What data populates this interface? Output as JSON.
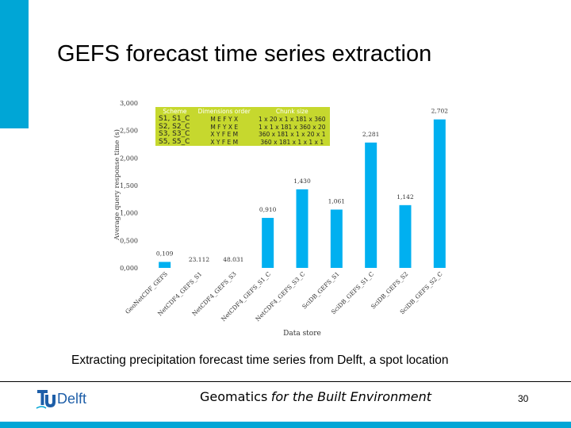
{
  "slide": {
    "title": "GEFS forecast time series extraction",
    "caption": "Extracting precipitation forecast time series from Delft, a spot location",
    "footer_bold": "Geomatics",
    "footer_italic": "for the Built Environment",
    "page_number": "30",
    "logo_text": "Delft",
    "logo_icon": "tu-flame-icon"
  },
  "colors": {
    "accent": "#00a6d6",
    "bar": "#00b0f0",
    "legend_bg": "#c6d82e",
    "logo": "#1d5ea8"
  },
  "legend": {
    "headers": {
      "scheme": "Scheme",
      "dimensions": "Dimensions order",
      "chunk": "Chunk size"
    },
    "rows": [
      {
        "scheme": "S1, S1_C",
        "dimensions": "M E F Y X",
        "chunk": "1 x 20 x 1 x 181 x 360"
      },
      {
        "scheme": "S2, S2_C",
        "dimensions": "M F Y X E",
        "chunk": "1 x 1 x 181 x 360 x 20"
      },
      {
        "scheme": "S3, S3_C",
        "dimensions": "X Y F E M",
        "chunk": "360 x 181 x 1 x 20 x 1"
      },
      {
        "scheme": "S5, S5_C",
        "dimensions": "X Y F E M",
        "chunk": "360 x 181 x 1 x 1 x 1"
      }
    ]
  },
  "chart_data": {
    "type": "bar",
    "title": "",
    "xlabel": "Data store",
    "ylabel": "Average query response time (s)",
    "ylim": [
      0,
      3
    ],
    "yticks": [
      0,
      0.5,
      1,
      1.5,
      2,
      2.5,
      3
    ],
    "ytick_labels": [
      "0,000",
      "0,500",
      "1,000",
      "1,500",
      "2,000",
      "2,500",
      "3,000"
    ],
    "grid": false,
    "categories": [
      "GeoNetCDF_GEFS",
      "NetCDF4_GEFS_S1",
      "NetCDF4_GEFS_S3",
      "NetCDF4_GEFS_S1_C",
      "NetCDF4_GEFS_S3_C",
      "SciDB_GEFS_S1",
      "SciDB_GEFS_S1_C",
      "SciDB_GEFS_S2",
      "SciDB_GEFS_S2_C"
    ],
    "values": [
      0.109,
      23.112,
      48.031,
      0.91,
      1.43,
      1.061,
      2.281,
      1.142,
      2.702
    ],
    "data_labels": [
      "0,109",
      "23.112",
      "48.031",
      "0,910",
      "1,430",
      "1,061",
      "2,281",
      "1,142",
      "2,702"
    ],
    "clipped": [
      false,
      true,
      true,
      false,
      false,
      false,
      false,
      false,
      false
    ]
  }
}
